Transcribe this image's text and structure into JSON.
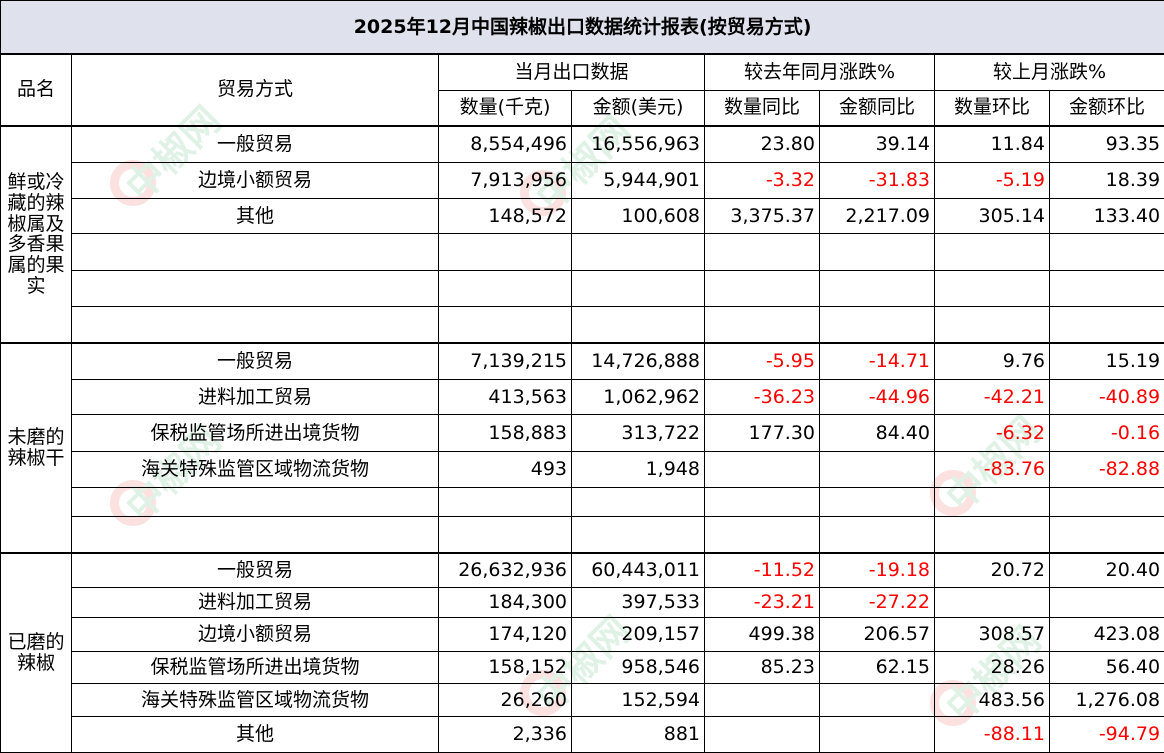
{
  "title": "2025年12月中国辣椒出口数据统计报表(按贸易方式)",
  "header": {
    "product": "品名",
    "trade_mode": "贸易方式",
    "groups": [
      "当月出口数据",
      "较去年同月涨跌%",
      "较上月涨跌%"
    ],
    "columns": [
      "数量(千克)",
      "金额(美元)",
      "数量同比",
      "金额同比",
      "数量环比",
      "金额环比"
    ]
  },
  "categories": [
    {
      "name": "鲜或冷藏的辣椒属及多香果属的果实",
      "rows": [
        {
          "mode": "一般贸易",
          "qty": "8,554,496",
          "amt": "16,556,963",
          "qty_yoy": "23.80",
          "amt_yoy": "39.14",
          "qty_mom": "11.84",
          "amt_mom": "93.35"
        },
        {
          "mode": "边境小额贸易",
          "qty": "7,913,956",
          "amt": "5,944,901",
          "qty_yoy": "-3.32",
          "amt_yoy": "-31.83",
          "qty_mom": "-5.19",
          "amt_mom": "18.39"
        },
        {
          "mode": "其他",
          "qty": "148,572",
          "amt": "100,608",
          "qty_yoy": "3,375.37",
          "amt_yoy": "2,217.09",
          "qty_mom": "305.14",
          "amt_mom": "133.40"
        }
      ]
    },
    {
      "name": "未磨的辣椒干",
      "rows": [
        {
          "mode": "一般贸易",
          "qty": "7,139,215",
          "amt": "14,726,888",
          "qty_yoy": "-5.95",
          "amt_yoy": "-14.71",
          "qty_mom": "9.76",
          "amt_mom": "15.19"
        },
        {
          "mode": "进料加工贸易",
          "qty": "413,563",
          "amt": "1,062,962",
          "qty_yoy": "-36.23",
          "amt_yoy": "-44.96",
          "qty_mom": "-42.21",
          "amt_mom": "-40.89"
        },
        {
          "mode": "保税监管场所进出境货物",
          "qty": "158,883",
          "amt": "313,722",
          "qty_yoy": "177.30",
          "amt_yoy": "84.40",
          "qty_mom": "-6.32",
          "amt_mom": "-0.16"
        },
        {
          "mode": "海关特殊监管区域物流货物",
          "qty": "493",
          "amt": "1,948",
          "qty_yoy": "",
          "amt_yoy": "",
          "qty_mom": "-83.76",
          "amt_mom": "-82.88"
        }
      ]
    },
    {
      "name": "已磨的辣椒",
      "rows": [
        {
          "mode": "一般贸易",
          "qty": "26,632,936",
          "amt": "60,443,011",
          "qty_yoy": "-11.52",
          "amt_yoy": "-19.18",
          "qty_mom": "20.72",
          "amt_mom": "20.40"
        },
        {
          "mode": "进料加工贸易",
          "qty": "184,300",
          "amt": "397,533",
          "qty_yoy": "-23.21",
          "amt_yoy": "-27.22",
          "qty_mom": "",
          "amt_mom": ""
        },
        {
          "mode": "边境小额贸易",
          "qty": "174,120",
          "amt": "209,157",
          "qty_yoy": "499.38",
          "amt_yoy": "206.57",
          "qty_mom": "308.57",
          "amt_mom": "423.08"
        },
        {
          "mode": "保税监管场所进出境货物",
          "qty": "158,152",
          "amt": "958,546",
          "qty_yoy": "85.23",
          "amt_yoy": "62.15",
          "qty_mom": "28.26",
          "amt_mom": "56.40"
        },
        {
          "mode": "海关特殊监管区域物流货物",
          "qty": "26,260",
          "amt": "152,594",
          "qty_yoy": "",
          "amt_yoy": "",
          "qty_mom": "483.56",
          "amt_mom": "1,276.08"
        },
        {
          "mode": "其他",
          "qty": "2,336",
          "amt": "881",
          "qty_yoy": "",
          "amt_yoy": "",
          "qty_mom": "-88.11",
          "amt_mom": "-94.79"
        }
      ]
    }
  ],
  "watermark": {
    "text": "中椒网",
    "colors": {
      "e": "#e2231a",
      "text": "#1aa34a"
    }
  },
  "colors": {
    "title_bg": "#dfe1ec",
    "negative": "#ff0000"
  }
}
